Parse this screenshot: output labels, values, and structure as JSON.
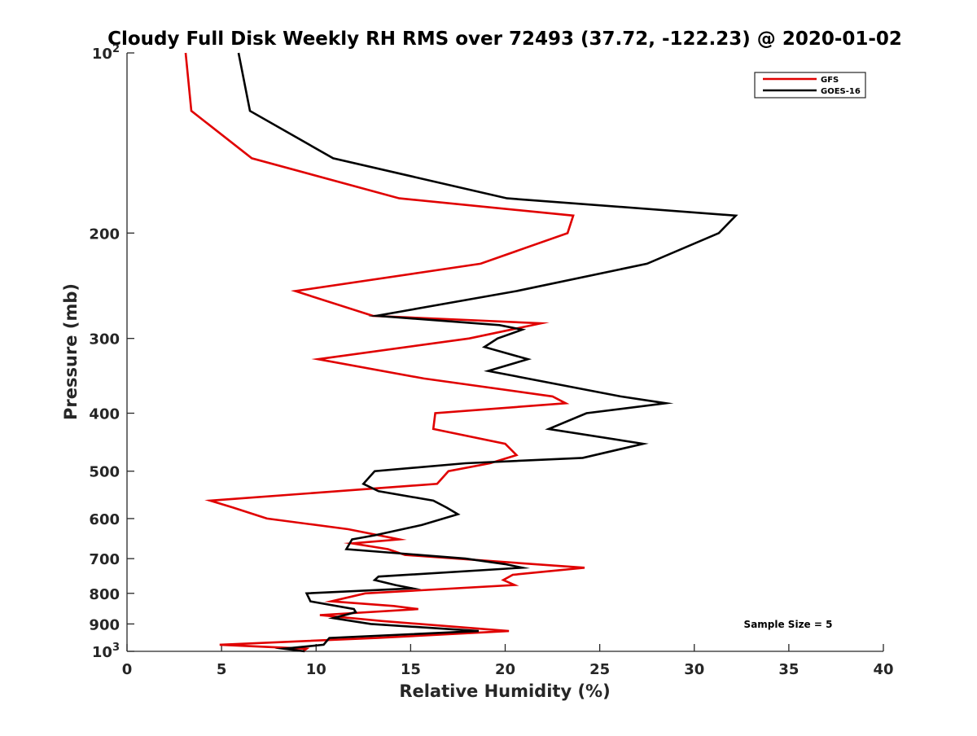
{
  "chart_data": {
    "type": "line",
    "title": "Cloudy Full Disk Weekly RH RMS over 72493 (37.72, -122.23) @ 2020-01-02",
    "xlabel": "Relative Humidity (%)",
    "ylabel": "Pressure (mb)",
    "xlim": [
      0,
      40
    ],
    "ylim": [
      100,
      1000
    ],
    "yscale": "log",
    "y_reversed": true,
    "grid": false,
    "legend_position": "top-right",
    "x_ticks": [
      0,
      5,
      10,
      15,
      20,
      25,
      30,
      35,
      40
    ],
    "x_tick_labels": [
      "0",
      "5",
      "10",
      "15",
      "20",
      "25",
      "30",
      "35",
      "40"
    ],
    "y_ticks": [
      100,
      200,
      300,
      400,
      500,
      600,
      700,
      800,
      900,
      1000
    ],
    "y_tick_labels": [
      {
        "base": "10",
        "exp": "2"
      },
      {
        "base": "200",
        "exp": ""
      },
      {
        "base": "300",
        "exp": ""
      },
      {
        "base": "400",
        "exp": ""
      },
      {
        "base": "500",
        "exp": ""
      },
      {
        "base": "600",
        "exp": ""
      },
      {
        "base": "700",
        "exp": ""
      },
      {
        "base": "800",
        "exp": ""
      },
      {
        "base": "900",
        "exp": ""
      },
      {
        "base": "10",
        "exp": "3"
      }
    ],
    "annotation": "Sample Size = 5",
    "series": [
      {
        "name": "GFS",
        "color": "#e00000",
        "points": [
          [
            3.1,
            100
          ],
          [
            3.4,
            125
          ],
          [
            6.6,
            150
          ],
          [
            14.4,
            175
          ],
          [
            23.6,
            187
          ],
          [
            23.3,
            200
          ],
          [
            18.7,
            225
          ],
          [
            8.9,
            250
          ],
          [
            13.0,
            275
          ],
          [
            21.9,
            283
          ],
          [
            18.1,
            300
          ],
          [
            10.1,
            325
          ],
          [
            15.7,
            350
          ],
          [
            22.5,
            375
          ],
          [
            23.2,
            385
          ],
          [
            16.3,
            400
          ],
          [
            16.2,
            425
          ],
          [
            20.0,
            450
          ],
          [
            20.6,
            470
          ],
          [
            19.2,
            485
          ],
          [
            17.0,
            500
          ],
          [
            16.4,
            525
          ],
          [
            4.4,
            560
          ],
          [
            5.6,
            575
          ],
          [
            7.4,
            600
          ],
          [
            11.7,
            625
          ],
          [
            14.4,
            650
          ],
          [
            11.9,
            660
          ],
          [
            13.8,
            675
          ],
          [
            14.7,
            690
          ],
          [
            24.2,
            725
          ],
          [
            20.4,
            745
          ],
          [
            19.9,
            760
          ],
          [
            20.5,
            775
          ],
          [
            12.6,
            800
          ],
          [
            10.8,
            825
          ],
          [
            14.1,
            840
          ],
          [
            15.4,
            850
          ],
          [
            10.2,
            870
          ],
          [
            13.5,
            890
          ],
          [
            20.2,
            925
          ],
          [
            13.2,
            950
          ],
          [
            4.9,
            975
          ],
          [
            9.5,
            990
          ],
          [
            9.3,
            1000
          ]
        ]
      },
      {
        "name": "GOES-16",
        "color": "#000000",
        "points": [
          [
            5.9,
            100
          ],
          [
            6.5,
            125
          ],
          [
            10.9,
            150
          ],
          [
            20.1,
            175
          ],
          [
            32.2,
            187
          ],
          [
            31.3,
            200
          ],
          [
            27.5,
            225
          ],
          [
            20.6,
            250
          ],
          [
            13.2,
            275
          ],
          [
            19.7,
            285
          ],
          [
            20.9,
            290
          ],
          [
            19.6,
            300
          ],
          [
            18.9,
            310
          ],
          [
            21.2,
            325
          ],
          [
            19.1,
            340
          ],
          [
            26.1,
            375
          ],
          [
            28.5,
            385
          ],
          [
            24.3,
            400
          ],
          [
            22.3,
            425
          ],
          [
            27.3,
            450
          ],
          [
            24.1,
            475
          ],
          [
            17.9,
            485
          ],
          [
            13.1,
            500
          ],
          [
            12.5,
            525
          ],
          [
            13.3,
            540
          ],
          [
            16.2,
            560
          ],
          [
            16.9,
            575
          ],
          [
            17.5,
            590
          ],
          [
            15.6,
            615
          ],
          [
            13.1,
            640
          ],
          [
            11.9,
            650
          ],
          [
            11.6,
            675
          ],
          [
            17.9,
            700
          ],
          [
            20.0,
            715
          ],
          [
            20.9,
            725
          ],
          [
            13.3,
            750
          ],
          [
            13.1,
            760
          ],
          [
            14.2,
            775
          ],
          [
            15.1,
            785
          ],
          [
            9.5,
            800
          ],
          [
            9.7,
            825
          ],
          [
            12.0,
            850
          ],
          [
            12.1,
            860
          ],
          [
            10.9,
            880
          ],
          [
            12.9,
            900
          ],
          [
            18.6,
            925
          ],
          [
            10.7,
            950
          ],
          [
            10.4,
            975
          ],
          [
            8.3,
            990
          ],
          [
            9.4,
            1000
          ]
        ]
      }
    ]
  }
}
